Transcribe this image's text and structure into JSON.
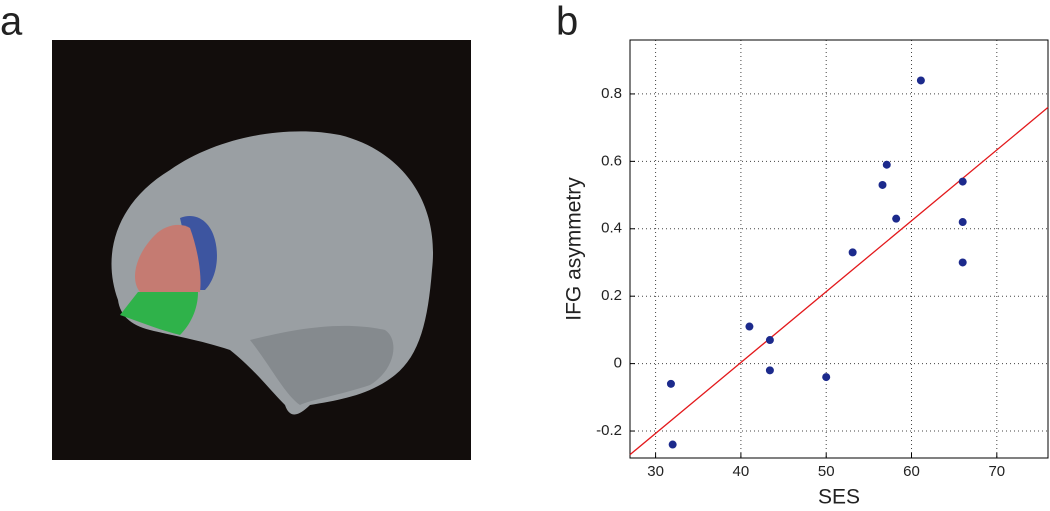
{
  "chart_data": {
    "type": "scatter",
    "panels": [
      "a",
      "b"
    ],
    "xlabel": "SES",
    "ylabel": "IFG asymmetry",
    "xlim": [
      27,
      76
    ],
    "ylim": [
      -0.28,
      0.96
    ],
    "xticks": [
      30,
      40,
      50,
      60,
      70
    ],
    "yticks": [
      -0.2,
      0,
      0.2,
      0.4,
      0.6,
      0.8
    ],
    "grid": true,
    "series": [
      {
        "color": "#1c2a8c",
        "x": [
          31.8,
          32,
          41,
          43.4,
          43.4,
          50,
          53.1,
          56.6,
          57.1,
          58.2,
          61.1,
          66,
          66,
          66
        ],
        "values": [
          -0.06,
          -0.24,
          0.11,
          0.07,
          -0.02,
          -0.04,
          0.33,
          0.53,
          0.59,
          0.43,
          0.84,
          0.54,
          0.42,
          0.3
        ]
      }
    ],
    "fit": {
      "color": "#e3191c",
      "x": [
        27,
        76
      ],
      "values": [
        -0.27,
        0.76
      ]
    }
  }
}
